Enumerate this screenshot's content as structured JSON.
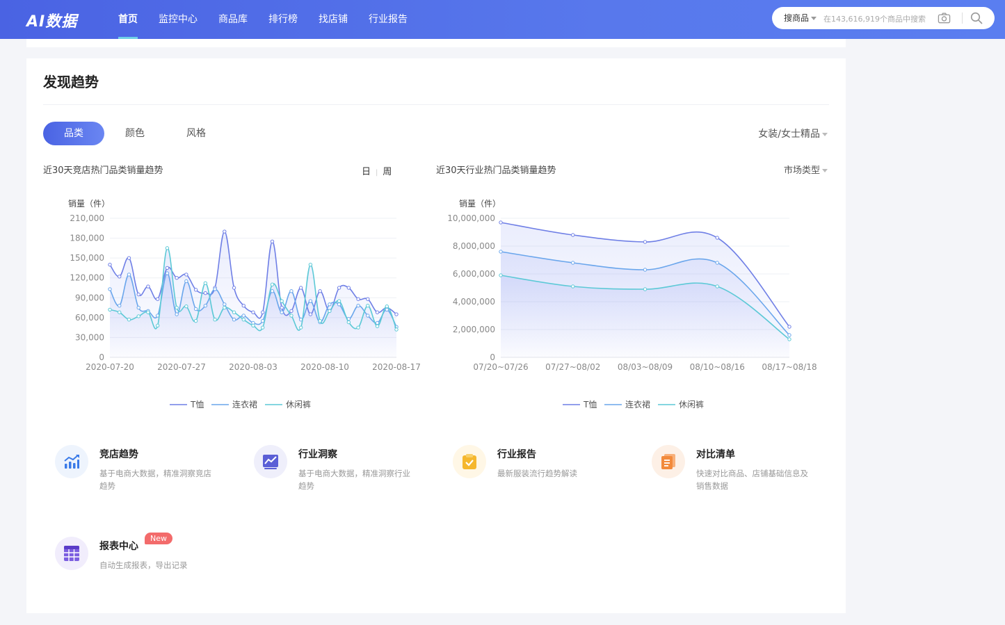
{
  "header": {
    "logo": "AI数据",
    "nav": [
      "首页",
      "监控中心",
      "商品库",
      "排行榜",
      "找店铺",
      "行业报告"
    ],
    "active_nav": 0,
    "search": {
      "type_label": "搜商品",
      "placeholder": "在143,616,919个商品中搜索"
    }
  },
  "section": {
    "title": "发现趋势",
    "tabs": [
      "品类",
      "颜色",
      "风格"
    ],
    "active_tab": 0,
    "category_select": "女装/女士精品"
  },
  "left_chart": {
    "title": "近30天竞店热门品类销量趋势",
    "period_day": "日",
    "period_week": "周"
  },
  "right_chart": {
    "title": "近30天行业热门品类销量趋势",
    "market_select": "市场类型"
  },
  "colors": {
    "tshirt": "#6f7fe6",
    "dress": "#6aa6ec",
    "pants": "#5cc9d6",
    "accent": "#4a63e3"
  },
  "chart_data": [
    {
      "type": "line",
      "ylabel": "销量（件）",
      "ylim": [
        0,
        210000
      ],
      "yticks": [
        "0",
        "30,000",
        "60,000",
        "90,000",
        "120,000",
        "150,000",
        "180,000",
        "210,000"
      ],
      "x_labels": [
        "2020-07-20",
        "2020-07-27",
        "2020-08-03",
        "2020-08-10",
        "2020-08-17"
      ],
      "legend": [
        "T恤",
        "连衣裙",
        "休闲裤"
      ],
      "legend_position": "bottom",
      "grid": true,
      "series": [
        {
          "name": "T恤",
          "values": [
            140000,
            122000,
            150000,
            95000,
            107000,
            88000,
            135000,
            120000,
            125000,
            102000,
            97000,
            105000,
            190000,
            105000,
            78000,
            68000,
            68000,
            175000,
            75000,
            70000,
            105000,
            65000,
            100000,
            70000,
            105000,
            105000,
            88000,
            88000,
            68000,
            75000,
            65000
          ]
        },
        {
          "name": "连衣裙",
          "values": [
            103000,
            78000,
            125000,
            75000,
            70000,
            63000,
            127000,
            65000,
            115000,
            73000,
            78000,
            103000,
            80000,
            57000,
            63000,
            52000,
            55000,
            100000,
            68000,
            100000,
            57000,
            85000,
            53000,
            80000,
            80000,
            58000,
            78000,
            63000,
            52000,
            72000,
            46000
          ]
        },
        {
          "name": "休闲裤",
          "values": [
            72000,
            68000,
            57000,
            62000,
            68000,
            48000,
            165000,
            75000,
            77000,
            55000,
            112000,
            57000,
            75000,
            68000,
            57000,
            48000,
            45000,
            110000,
            85000,
            63000,
            45000,
            140000,
            55000,
            70000,
            85000,
            53000,
            45000,
            78000,
            47000,
            77000,
            42000
          ]
        }
      ]
    },
    {
      "type": "line",
      "ylabel": "销量（件）",
      "ylim": [
        0,
        10000000
      ],
      "yticks": [
        "0",
        "2,000,000",
        "4,000,000",
        "6,000,000",
        "8,000,000",
        "10,000,000"
      ],
      "categories": [
        "07/20~07/26",
        "07/27~08/02",
        "08/03~08/09",
        "08/10~08/16",
        "08/17~08/18"
      ],
      "legend": [
        "T恤",
        "连衣裙",
        "休闲裤"
      ],
      "legend_position": "bottom",
      "grid": true,
      "series": [
        {
          "name": "T恤",
          "values": [
            9700000,
            8800000,
            8300000,
            8600000,
            2200000
          ]
        },
        {
          "name": "连衣裙",
          "values": [
            7600000,
            6800000,
            6300000,
            6800000,
            1600000
          ]
        },
        {
          "name": "休闲裤",
          "values": [
            5900000,
            5100000,
            4900000,
            5100000,
            1300000
          ]
        }
      ]
    }
  ],
  "features": [
    {
      "title": "竞店趋势",
      "desc": "基于电商大数据，精准洞察竞店趋势",
      "icon": "trend-chart-icon"
    },
    {
      "title": "行业洞察",
      "desc": "基于电商大数据，精准洞察行业趋势",
      "icon": "monitor-chart-icon"
    },
    {
      "title": "行业报告",
      "desc": "最新服装流行趋势解读",
      "icon": "clipboard-check-icon"
    },
    {
      "title": "对比清单",
      "desc": "快速对比商品、店铺基础信息及销售数据",
      "icon": "documents-icon"
    },
    {
      "title": "报表中心",
      "desc": "自动生成报表，导出记录",
      "icon": "table-icon",
      "badge": "New"
    }
  ]
}
